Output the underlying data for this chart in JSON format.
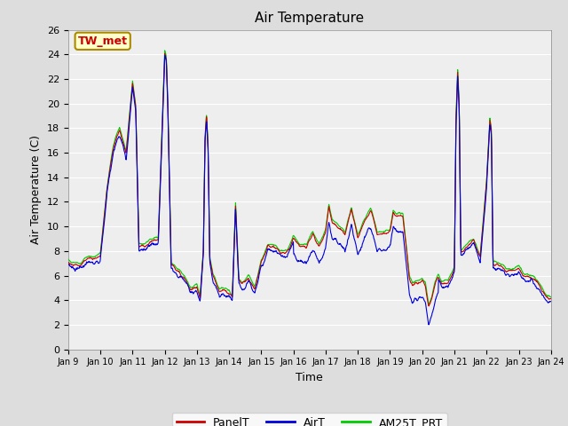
{
  "title": "Air Temperature",
  "xlabel": "Time",
  "ylabel": "Air Temperature (C)",
  "ylim": [
    0,
    26
  ],
  "yticks": [
    0,
    2,
    4,
    6,
    8,
    10,
    12,
    14,
    16,
    18,
    20,
    22,
    24,
    26
  ],
  "xtick_labels": [
    "Jan 9",
    "Jan 10",
    "Jan 11",
    "Jan 12",
    "Jan 13",
    "Jan 14",
    "Jan 15",
    "Jan 16",
    "Jan 17",
    "Jan 18",
    "Jan 19",
    "Jan 20",
    "Jan 21",
    "Jan 22",
    "Jan 23",
    "Jan 24"
  ],
  "line_colors": {
    "PanelT": "#cc0000",
    "AirT": "#0000dd",
    "AM25T_PRT": "#00cc00"
  },
  "bg_color": "#dddddd",
  "plot_bg_color": "#eeeeee",
  "annotation_text": "TW_met",
  "annotation_color": "#cc0000",
  "annotation_bg": "#ffffcc",
  "annotation_border": "#aa8800",
  "legend_labels": [
    "PanelT",
    "AirT",
    "AM25T_PRT"
  ],
  "title_fontsize": 11,
  "axis_fontsize": 9,
  "tick_fontsize": 8,
  "legend_fontsize": 9
}
